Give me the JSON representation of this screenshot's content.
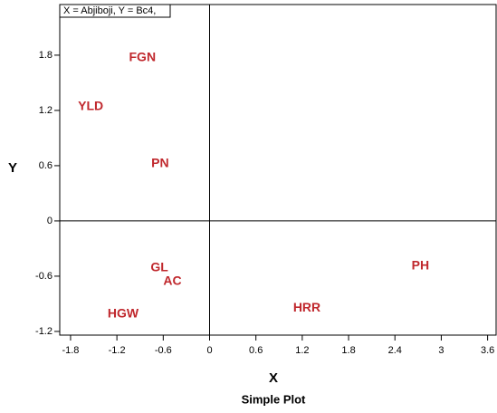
{
  "chart_data": {
    "type": "scatter",
    "title": "Simple Plot",
    "annotation": "X = Abjiboji, Y = Bc4,",
    "x_label": "X",
    "y_label": "Y",
    "color": "#c0282d",
    "points": [
      {
        "label": "FGN",
        "x": -0.87,
        "y": 1.77
      },
      {
        "label": "YLD",
        "x": -1.54,
        "y": 1.24
      },
      {
        "label": "PN",
        "x": -0.64,
        "y": 0.62
      },
      {
        "label": "GL",
        "x": -0.65,
        "y": -0.51
      },
      {
        "label": "AC",
        "x": -0.48,
        "y": -0.66
      },
      {
        "label": "HGW",
        "x": -1.12,
        "y": -1.01
      },
      {
        "label": "HRR",
        "x": 1.26,
        "y": -0.95
      },
      {
        "label": "PH",
        "x": 2.73,
        "y": -0.49
      }
    ],
    "xlim": [
      -1.94,
      3.71
    ],
    "xticks": [
      -1.8,
      -1.2,
      -0.6,
      0,
      0.6,
      1.2,
      1.8,
      2.4,
      3,
      3.6
    ],
    "ylim": [
      -1.24,
      2.35
    ],
    "yticks": [
      -1.2,
      -0.6,
      0,
      0.6,
      1.2,
      1.8
    ],
    "origin_lines": true
  }
}
